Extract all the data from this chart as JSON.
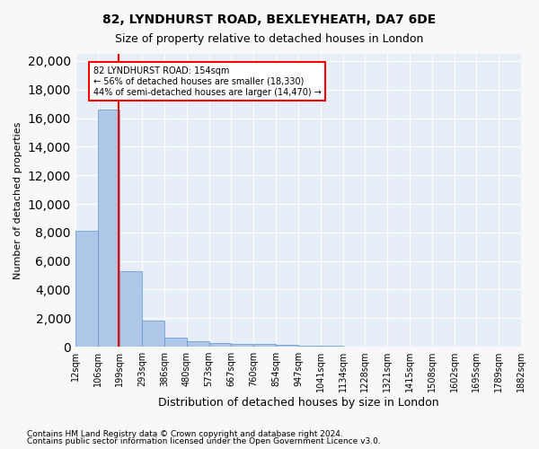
{
  "title1": "82, LYNDHURST ROAD, BEXLEYHEATH, DA7 6DE",
  "title2": "Size of property relative to detached houses in London",
  "xlabel": "Distribution of detached houses by size in London",
  "ylabel": "Number of detached properties",
  "footnote1": "Contains HM Land Registry data © Crown copyright and database right 2024.",
  "footnote2": "Contains public sector information licensed under the Open Government Licence v3.0.",
  "bin_labels": [
    "12sqm",
    "106sqm",
    "199sqm",
    "293sqm",
    "386sqm",
    "480sqm",
    "573sqm",
    "667sqm",
    "760sqm",
    "854sqm",
    "947sqm",
    "1041sqm",
    "1134sqm",
    "1228sqm",
    "1321sqm",
    "1415sqm",
    "1508sqm",
    "1602sqm",
    "1695sqm",
    "1789sqm",
    "1882sqm"
  ],
  "bar_values": [
    8100,
    16600,
    5300,
    1850,
    650,
    370,
    280,
    220,
    190,
    150,
    80,
    40,
    20,
    10,
    5,
    3,
    2,
    2,
    1,
    1
  ],
  "bar_color": "#aec6e8",
  "bar_edge_color": "#5a96c8",
  "red_line_x": 1.45,
  "annotation_line1": "82 LYNDHURST ROAD: 154sqm",
  "annotation_line2": "← 56% of detached houses are smaller (18,330)",
  "annotation_line3": "44% of semi-detached houses are larger (14,470) →",
  "ylim": [
    0,
    20500
  ],
  "yticks": [
    0,
    2000,
    4000,
    6000,
    8000,
    10000,
    12000,
    14000,
    16000,
    18000,
    20000
  ],
  "plot_bg_color": "#e8eef8",
  "fig_bg_color": "#f8f8f8"
}
